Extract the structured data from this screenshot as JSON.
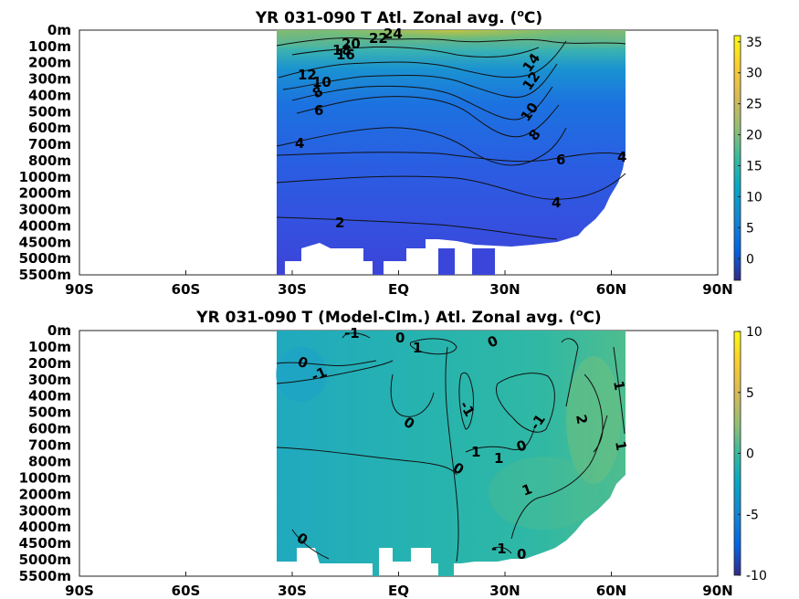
{
  "chart_data": [
    {
      "type": "heatmap",
      "title": "YR 031-090 T Atl. Zonal avg. (",
      "title_sup": "o",
      "title_tail": "C)",
      "x_ticks": [
        "90S",
        "60S",
        "30S",
        "EQ",
        "30N",
        "60N",
        "90N"
      ],
      "x_tick_values": [
        -90,
        -60,
        -30,
        0,
        30,
        60,
        90
      ],
      "xlim": [
        -90,
        90
      ],
      "y_ticks": [
        "0m",
        "100m",
        "200m",
        "300m",
        "400m",
        "500m",
        "600m",
        "700m",
        "800m",
        "1000m",
        "2000m",
        "3000m",
        "4000m",
        "4500m",
        "5000m",
        "5500m"
      ],
      "colorbar_ticks": [
        "0",
        "5",
        "10",
        "15",
        "20",
        "25",
        "30",
        "35"
      ],
      "colorbar_range": [
        -3.5,
        36
      ],
      "contour_labels": [
        "24",
        "22",
        "20",
        "18",
        "16",
        "14",
        "12",
        "12",
        "10",
        "10",
        "8",
        "8",
        "6",
        "6",
        "4",
        "4",
        "4",
        "2"
      ],
      "colormap": "parula"
    },
    {
      "type": "heatmap",
      "title": "YR 031-090 T (Model-Clm.) Atl. Zonal avg. (",
      "title_sup": "o",
      "title_tail": "C)",
      "x_ticks": [
        "90S",
        "60S",
        "30S",
        "EQ",
        "30N",
        "60N",
        "90N"
      ],
      "x_tick_values": [
        -90,
        -60,
        -30,
        0,
        30,
        60,
        90
      ],
      "xlim": [
        -90,
        90
      ],
      "y_ticks": [
        "0m",
        "100m",
        "200m",
        "300m",
        "400m",
        "500m",
        "600m",
        "700m",
        "800m",
        "1000m",
        "2000m",
        "3000m",
        "4000m",
        "4500m",
        "5000m",
        "5500m"
      ],
      "colorbar_ticks": [
        "-10",
        "-5",
        "0",
        "5",
        "10"
      ],
      "colorbar_range": [
        -10,
        10
      ],
      "contour_labels": [
        "-1",
        "0",
        "1",
        "0",
        "0",
        "-1",
        "-1",
        "0",
        "-1",
        "1",
        "0",
        "1",
        "2",
        "1",
        "0",
        "1",
        "1",
        "0",
        "0",
        "-1"
      ],
      "colormap": "parula"
    }
  ]
}
